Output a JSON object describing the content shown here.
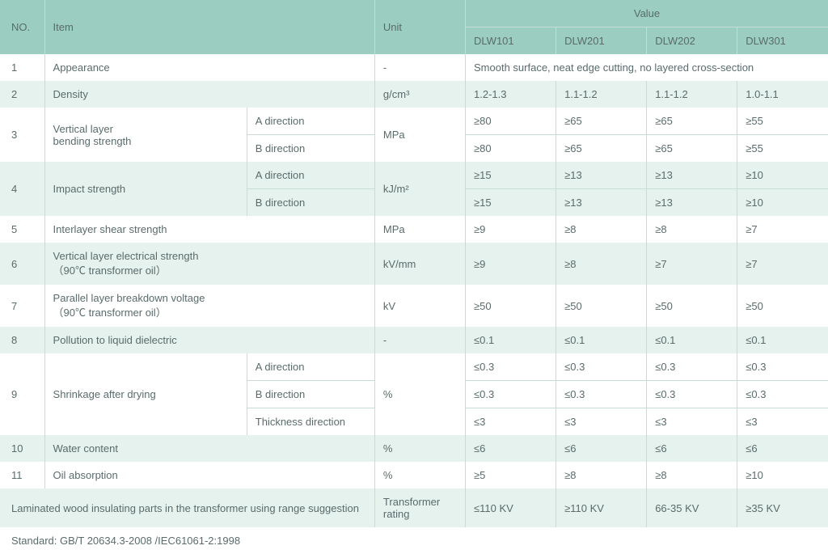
{
  "header": {
    "no": "NO.",
    "item": "Item",
    "unit": "Unit",
    "value": "Value",
    "models": [
      "DLW101",
      "DLW201",
      "DLW202",
      "DLW301"
    ]
  },
  "rows": [
    {
      "no": "1",
      "item": "Appearance",
      "unit": "-",
      "merged": "Smooth surface, neat edge cutting, no layered cross-section"
    },
    {
      "no": "2",
      "item": "Density",
      "unit": "g/cm³",
      "v": [
        "1.2-1.3",
        "1.1-1.2",
        "1.1-1.2",
        "1.0-1.1"
      ]
    },
    {
      "no": "3",
      "item": "Vertical layer\n bending strength",
      "unit": "MPa",
      "dirs": [
        {
          "dir": "A direction",
          "v": [
            "≥80",
            "≥65",
            "≥65",
            "≥55"
          ]
        },
        {
          "dir": "B direction",
          "v": [
            "≥80",
            "≥65",
            "≥65",
            "≥55"
          ]
        }
      ]
    },
    {
      "no": "4",
      "item": "Impact strength",
      "unit": "kJ/m²",
      "dirs": [
        {
          "dir": "A direction",
          "v": [
            "≥15",
            "≥13",
            "≥13",
            "≥10"
          ]
        },
        {
          "dir": "B direction",
          "v": [
            "≥15",
            "≥13",
            "≥13",
            "≥10"
          ]
        }
      ]
    },
    {
      "no": "5",
      "item": "Interlayer shear strength",
      "unit": "MPa",
      "v": [
        "≥9",
        "≥8",
        "≥8",
        "≥7"
      ]
    },
    {
      "no": "6",
      "item": "Vertical layer electrical strength\n（90℃ transformer oil）",
      "unit": "kV/mm",
      "v": [
        "≥9",
        "≥8",
        "≥7",
        "≥7"
      ]
    },
    {
      "no": "7",
      "item": "Parallel layer breakdown voltage\n（90℃ transformer oil）",
      "unit": "kV",
      "v": [
        "≥50",
        "≥50",
        "≥50",
        "≥50"
      ]
    },
    {
      "no": "8",
      "item": "Pollution to liquid dielectric",
      "unit": "-",
      "v": [
        "≤0.1",
        "≤0.1",
        "≤0.1",
        "≤0.1"
      ]
    },
    {
      "no": "9",
      "item": "Shrinkage after drying",
      "unit": "%",
      "dirs": [
        {
          "dir": "A direction",
          "v": [
            "≤0.3",
            "≤0.3",
            "≤0.3",
            "≤0.3"
          ]
        },
        {
          "dir": "B direction",
          "v": [
            "≤0.3",
            "≤0.3",
            "≤0.3",
            "≤0.3"
          ]
        },
        {
          "dir": "Thickness direction",
          "v": [
            "≤3",
            "≤3",
            "≤3",
            "≤3"
          ]
        }
      ]
    },
    {
      "no": "10",
      "item": "Water content",
      "unit": "%",
      "v": [
        "≤6",
        "≤6",
        "≤6",
        "≤6"
      ]
    },
    {
      "no": "11",
      "item": "Oil absorption",
      "unit": "%",
      "v": [
        "≥5",
        "≥8",
        "≥8",
        "≥10"
      ]
    }
  ],
  "suggestion": {
    "label": "Laminated wood insulating parts in the transformer using range suggestion",
    "unit": "Transformer rating",
    "v": [
      "≤110 KV",
      "≥110 KV",
      "66-35 KV",
      "≥35 KV"
    ]
  },
  "standard": "Standard:  GB/T 20634.3-2008 /IEC61061-2:1998",
  "colors": {
    "header_bg": "#9bcdc1",
    "band_bg": "#e5f2ee",
    "border": "#c8dcd7",
    "text": "#5a6b6b"
  }
}
